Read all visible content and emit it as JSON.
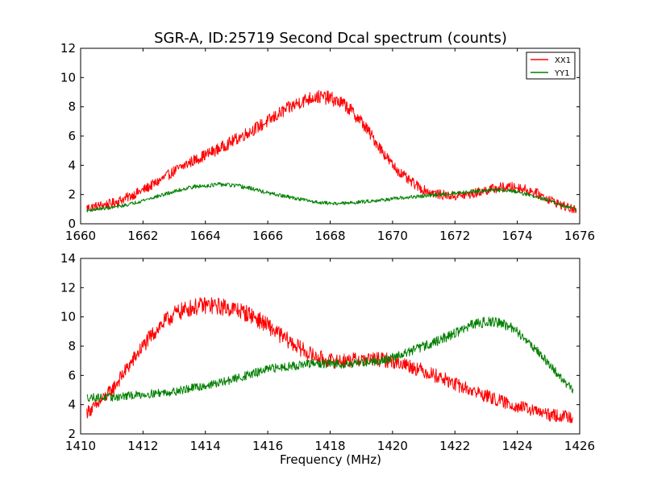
{
  "figure": {
    "title": "SGR-A, ID:25719 Second Dcal spectrum (counts)",
    "xlabel": "Frequency (MHz)"
  },
  "colors": {
    "XX1": "#ff0000",
    "YY1": "#008000",
    "axes": "#000000",
    "background": "#ffffff"
  },
  "legend": {
    "entries": [
      "XX1",
      "YY1"
    ],
    "placement": "top-right"
  },
  "chart_data": [
    {
      "type": "line",
      "title": "SGR-A, ID:25719 Second Dcal spectrum (counts)",
      "xlabel": "",
      "ylabel": "",
      "xlim": [
        1660,
        1676
      ],
      "ylim": [
        0,
        12
      ],
      "xticks": [
        1660,
        1662,
        1664,
        1666,
        1668,
        1670,
        1672,
        1674,
        1676
      ],
      "yticks": [
        0,
        2,
        4,
        6,
        8,
        10,
        12
      ],
      "grid": false,
      "legend": "top-right",
      "series": [
        {
          "name": "XX1",
          "color": "#ff0000",
          "x": [
            1660.2,
            1660.5,
            1661.0,
            1661.5,
            1662.0,
            1662.5,
            1663.0,
            1663.5,
            1664.0,
            1664.5,
            1665.0,
            1665.5,
            1666.0,
            1666.5,
            1667.0,
            1667.5,
            1668.0,
            1668.5,
            1669.0,
            1669.5,
            1670.0,
            1670.5,
            1671.0,
            1671.5,
            1672.0,
            1672.5,
            1673.0,
            1673.5,
            1674.0,
            1674.5,
            1675.0,
            1675.5,
            1675.9
          ],
          "y": [
            1.1,
            1.2,
            1.4,
            1.8,
            2.3,
            2.9,
            3.6,
            4.2,
            4.7,
            5.2,
            5.8,
            6.4,
            7.0,
            7.7,
            8.3,
            8.7,
            8.6,
            8.1,
            7.0,
            5.5,
            4.0,
            3.0,
            2.3,
            2.0,
            1.9,
            2.0,
            2.3,
            2.5,
            2.5,
            2.2,
            1.7,
            1.2,
            0.9
          ],
          "noise": 0.4
        },
        {
          "name": "YY1",
          "color": "#008000",
          "x": [
            1660.2,
            1660.5,
            1661.0,
            1661.5,
            1662.0,
            1662.5,
            1663.0,
            1663.5,
            1664.0,
            1664.5,
            1665.0,
            1665.5,
            1666.0,
            1666.5,
            1667.0,
            1667.5,
            1668.0,
            1668.5,
            1669.0,
            1669.5,
            1670.0,
            1670.5,
            1671.0,
            1671.5,
            1672.0,
            1672.5,
            1673.0,
            1673.5,
            1674.0,
            1674.5,
            1675.0,
            1675.5,
            1675.9
          ],
          "y": [
            0.9,
            1.0,
            1.1,
            1.3,
            1.6,
            1.9,
            2.2,
            2.5,
            2.6,
            2.7,
            2.6,
            2.4,
            2.1,
            1.9,
            1.7,
            1.5,
            1.4,
            1.4,
            1.5,
            1.6,
            1.7,
            1.8,
            1.9,
            2.0,
            2.1,
            2.2,
            2.3,
            2.3,
            2.2,
            1.9,
            1.6,
            1.2,
            1.0
          ],
          "noise": 0.12
        }
      ]
    },
    {
      "type": "line",
      "title": "",
      "xlabel": "Frequency (MHz)",
      "ylabel": "",
      "xlim": [
        1410,
        1426
      ],
      "ylim": [
        2,
        14
      ],
      "xticks": [
        1410,
        1412,
        1414,
        1416,
        1418,
        1420,
        1422,
        1424,
        1426
      ],
      "yticks": [
        2,
        4,
        6,
        8,
        10,
        12,
        14
      ],
      "grid": false,
      "series": [
        {
          "name": "XX1",
          "color": "#ff0000",
          "x": [
            1410.2,
            1410.5,
            1411.0,
            1411.5,
            1412.0,
            1412.5,
            1413.0,
            1413.5,
            1414.0,
            1414.5,
            1415.0,
            1415.5,
            1416.0,
            1416.5,
            1417.0,
            1417.5,
            1418.0,
            1418.5,
            1419.0,
            1419.5,
            1420.0,
            1420.5,
            1421.0,
            1421.5,
            1422.0,
            1422.5,
            1423.0,
            1423.5,
            1424.0,
            1424.5,
            1425.0,
            1425.5,
            1425.8
          ],
          "y": [
            3.5,
            3.9,
            5.0,
            6.5,
            8.0,
            9.3,
            10.2,
            10.6,
            10.8,
            10.7,
            10.5,
            10.1,
            9.4,
            8.6,
            7.9,
            7.3,
            7.0,
            7.0,
            7.1,
            7.1,
            7.0,
            6.7,
            6.3,
            5.9,
            5.4,
            5.0,
            4.6,
            4.2,
            3.9,
            3.6,
            3.3,
            3.2,
            3.2
          ],
          "noise": 0.5
        },
        {
          "name": "YY1",
          "color": "#008000",
          "x": [
            1410.2,
            1410.5,
            1411.0,
            1411.5,
            1412.0,
            1412.5,
            1413.0,
            1413.5,
            1414.0,
            1414.5,
            1415.0,
            1415.5,
            1416.0,
            1416.5,
            1417.0,
            1417.5,
            1418.0,
            1418.5,
            1419.0,
            1419.5,
            1420.0,
            1420.5,
            1421.0,
            1421.5,
            1422.0,
            1422.5,
            1423.0,
            1423.5,
            1424.0,
            1424.5,
            1425.0,
            1425.5,
            1425.8
          ],
          "y": [
            4.5,
            4.5,
            4.5,
            4.6,
            4.7,
            4.8,
            4.9,
            5.1,
            5.3,
            5.5,
            5.8,
            6.1,
            6.4,
            6.6,
            6.7,
            6.8,
            6.8,
            6.8,
            6.9,
            7.0,
            7.2,
            7.6,
            8.0,
            8.4,
            8.9,
            9.4,
            9.7,
            9.6,
            9.0,
            8.0,
            6.8,
            5.6,
            4.9
          ],
          "noise": 0.3
        }
      ]
    }
  ]
}
